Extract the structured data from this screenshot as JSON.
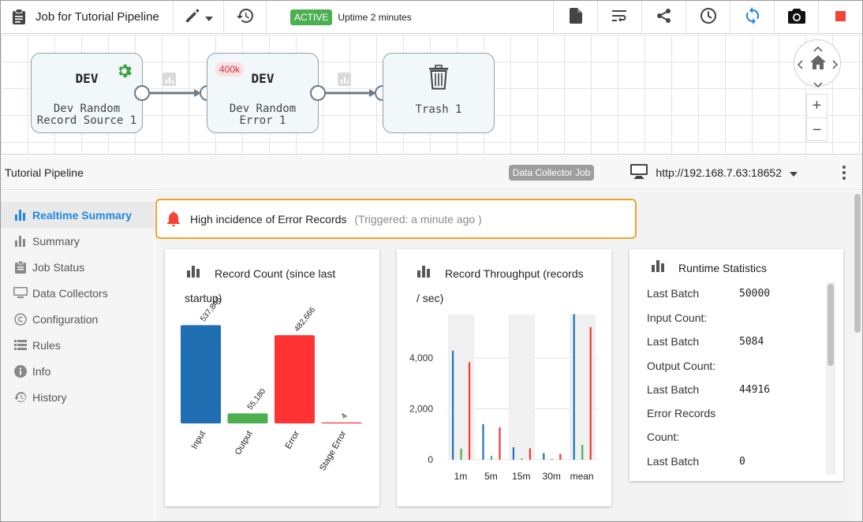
{
  "topbar": {
    "job_title": "Job for Tutorial Pipeline",
    "status_badge": "ACTIVE",
    "uptime": "Uptime 2 minutes",
    "colors": {
      "active_badge": "#4caf50",
      "stop": "#f44336",
      "sync": "#1e88e5"
    }
  },
  "pipeline": {
    "stages": [
      {
        "library": "DEV",
        "name_line1": "Dev Random",
        "name_line2": "Record Source 1"
      },
      {
        "library": "DEV",
        "name_line1": "Dev Random",
        "name_line2": "Error 1",
        "badge": "400k"
      },
      {
        "name_line1": "Trash 1"
      }
    ]
  },
  "header": {
    "pipeline_name": "Tutorial Pipeline",
    "job_badge": "Data Collector Job",
    "collector_url": "http://192.168.7.63:18652"
  },
  "nav": {
    "items": [
      {
        "label": "Realtime Summary",
        "icon": "bar-chart-icon",
        "active": true
      },
      {
        "label": "Summary",
        "icon": "bar-chart-icon"
      },
      {
        "label": "Job Status",
        "icon": "clipboard-icon"
      },
      {
        "label": "Data Collectors",
        "icon": "monitor-icon"
      },
      {
        "label": "Configuration",
        "icon": "copyright-icon"
      },
      {
        "label": "Rules",
        "icon": "list-icon"
      },
      {
        "label": "Info",
        "icon": "info-icon"
      },
      {
        "label": "History",
        "icon": "history-icon"
      }
    ]
  },
  "alert": {
    "message": "High incidence of Error Records",
    "triggered": "(Triggered: a minute ago )"
  },
  "record_count": {
    "title_line1": "Record Count (since last",
    "title_line2": "startup)"
  },
  "throughput": {
    "title_line1": "Record Throughput (records",
    "title_line2": "/ sec)"
  },
  "runtime": {
    "title": "Runtime Statistics",
    "rows": [
      {
        "label": "Last Batch",
        "value": "50000"
      },
      {
        "label": "Input Count:"
      },
      {
        "label": "Last Batch",
        "value": "5084"
      },
      {
        "label": "Output Count:"
      },
      {
        "label": "Last Batch",
        "value": "44916"
      },
      {
        "label": "Error Records"
      },
      {
        "label": "Count:"
      },
      {
        "label": "Last Batch",
        "value": "0"
      }
    ]
  },
  "chart_data": [
    {
      "type": "bar",
      "categories": [
        "Input",
        "Output",
        "Error",
        "Stage Error"
      ],
      "values": [
        537846,
        55180,
        482666,
        4
      ],
      "value_labels": [
        "537,846",
        "55,180",
        "482,666",
        "4"
      ],
      "colors": [
        "#1f6fb2",
        "#4caf50",
        "#ff3333",
        "#ff3333"
      ],
      "ylim": [
        0,
        600000
      ]
    },
    {
      "type": "bar",
      "categories": [
        "1m",
        "5m",
        "15m",
        "30m",
        "mean"
      ],
      "y_ticks": [
        0,
        2000,
        4000
      ],
      "y_tick_labels": [
        "0",
        "2,000",
        "4,000"
      ],
      "ylim": [
        0,
        5700
      ],
      "series": [
        {
          "color": "#1e73be",
          "values": [
            4280,
            1400,
            490,
            260,
            5720
          ]
        },
        {
          "color": "#4caf50",
          "values": [
            430,
            150,
            50,
            25,
            580
          ]
        },
        {
          "color": "#ff3333",
          "values": [
            3830,
            1270,
            450,
            230,
            5210
          ]
        }
      ]
    }
  ]
}
